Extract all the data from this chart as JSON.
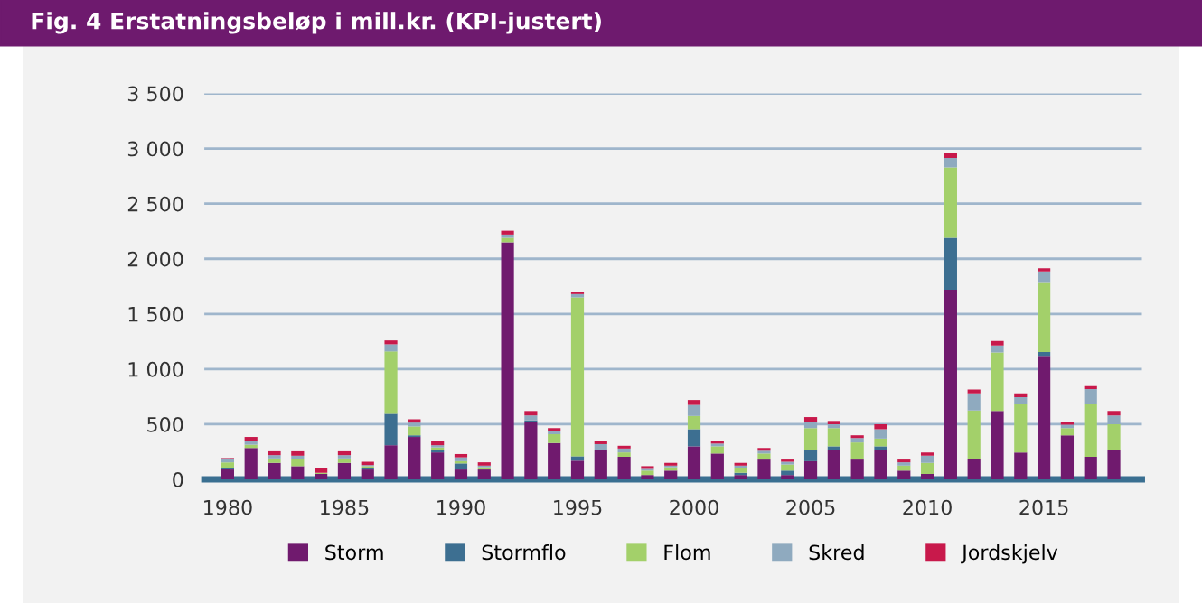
{
  "chart_data": {
    "type": "bar",
    "stacked": true,
    "title": "Fig. 4 Erstatningsbeløp i mill.kr. (KPI-justert)",
    "x": [
      1980,
      1981,
      1982,
      1983,
      1984,
      1985,
      1986,
      1987,
      1988,
      1989,
      1990,
      1991,
      1992,
      1993,
      1994,
      1995,
      1996,
      1997,
      1998,
      1999,
      2000,
      2001,
      2002,
      2003,
      2004,
      2005,
      2006,
      2007,
      2008,
      2009,
      2010,
      2011,
      2012,
      2013,
      2014,
      2015,
      2016,
      2017,
      2018
    ],
    "series": [
      {
        "name": "Storm",
        "color": "#701a6e",
        "values": [
          90,
          285,
          150,
          120,
          50,
          150,
          90,
          310,
          385,
          245,
          90,
          90,
          2150,
          520,
          330,
          170,
          270,
          205,
          40,
          80,
          300,
          235,
          40,
          180,
          40,
          165,
          270,
          180,
          270,
          80,
          50,
          1720,
          180,
          620,
          245,
          1120,
          400,
          205,
          270
        ]
      },
      {
        "name": "Stormflo",
        "color": "#3d6f91",
        "values": [
          10,
          0,
          0,
          0,
          0,
          0,
          15,
          285,
          15,
          20,
          55,
          0,
          0,
          15,
          0,
          40,
          0,
          0,
          0,
          0,
          155,
          0,
          20,
          0,
          40,
          105,
          30,
          0,
          30,
          0,
          0,
          470,
          0,
          0,
          0,
          35,
          0,
          0,
          0
        ]
      },
      {
        "name": "Flom",
        "color": "#a3d06a",
        "values": [
          55,
          30,
          40,
          65,
          10,
          40,
          15,
          565,
          80,
          25,
          20,
          20,
          40,
          0,
          80,
          1440,
          0,
          40,
          40,
          30,
          120,
          65,
          40,
          55,
          55,
          195,
          165,
          155,
          70,
          45,
          100,
          640,
          445,
          530,
          435,
          635,
          65,
          475,
          230
        ]
      },
      {
        "name": "Skred",
        "color": "#8faabf",
        "values": [
          35,
          35,
          30,
          30,
          0,
          30,
          10,
          65,
          35,
          20,
          35,
          15,
          30,
          45,
          30,
          30,
          50,
          35,
          15,
          15,
          100,
          25,
          25,
          25,
          25,
          55,
          35,
          40,
          85,
          30,
          65,
          85,
          155,
          65,
          65,
          95,
          30,
          140,
          80
        ]
      },
      {
        "name": "Jordskjelv",
        "color": "#c8194b",
        "values": [
          5,
          35,
          35,
          40,
          40,
          35,
          30,
          35,
          30,
          35,
          30,
          30,
          35,
          40,
          25,
          20,
          25,
          25,
          25,
          25,
          45,
          20,
          25,
          25,
          20,
          45,
          30,
          25,
          45,
          25,
          30,
          50,
          35,
          40,
          35,
          30,
          30,
          25,
          40
        ]
      }
    ],
    "xlim": [
      1979,
      2019.2
    ],
    "xticks": [
      1980,
      1985,
      1990,
      1995,
      2000,
      2005,
      2010,
      2015
    ],
    "ylim": [
      0,
      3500
    ],
    "yticks": [
      0,
      500,
      {
        "value": 1000,
        "label": "1 000"
      },
      {
        "value": 1500,
        "label": "1 500"
      },
      {
        "value": 2000,
        "label": "2 000"
      },
      {
        "value": 2500,
        "label": "2 500"
      },
      {
        "value": 3000,
        "label": "3 000"
      },
      {
        "value": 3500,
        "label": "3 500"
      }
    ],
    "grid": "y",
    "legend": "bottom"
  }
}
